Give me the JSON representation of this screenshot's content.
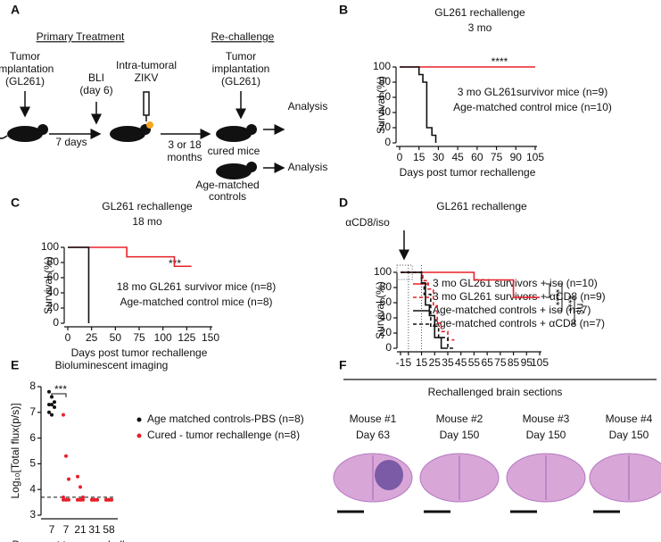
{
  "panel_labels": [
    "A",
    "B",
    "C",
    "D",
    "E",
    "F"
  ],
  "diagram_a": {
    "primary_treatment": "Primary Treatment",
    "rechallenge": "Re-challenge",
    "implant_1": [
      "Tumor",
      "implantation",
      "(GL261)"
    ],
    "bli": [
      "BLI",
      "(day 6)"
    ],
    "zikv": [
      "Intra-tumoral",
      "ZIKV"
    ],
    "implant_2": [
      "Tumor",
      "implantation",
      "(GL261)"
    ],
    "interval_1": "7 days",
    "interval_2": [
      "3 or 18",
      "months"
    ],
    "cured": "cured mice",
    "controls": [
      "Age-matched",
      "controls"
    ],
    "analysis": [
      "Analysis",
      "Analysis"
    ]
  },
  "chart_data": [
    {
      "type": "line",
      "title": "GL261 rechallenge",
      "subtitle": "3 mo",
      "xlabel": "Days post tumor rechallenge",
      "ylabel": "Survival (%)",
      "xlim": [
        0,
        105
      ],
      "xticks": [
        0,
        15,
        30,
        45,
        60,
        75,
        90,
        105
      ],
      "ylim": [
        0,
        100
      ],
      "yticks": [
        0,
        20,
        40,
        60,
        80,
        100
      ],
      "annotations": [
        "****"
      ],
      "series": [
        {
          "name": "3 mo GL261survivor mice (n=9)",
          "color": "#e8202a",
          "line_style": "solid",
          "x": [
            0,
            105
          ],
          "values": [
            100,
            100
          ]
        },
        {
          "name": "Age-matched control mice (n=10)",
          "color": "#111111",
          "line_style": "solid",
          "x": [
            0,
            15,
            15,
            18,
            18,
            21,
            21,
            25,
            25,
            28,
            28
          ],
          "values": [
            100,
            100,
            90,
            90,
            80,
            80,
            20,
            20,
            10,
            10,
            0
          ]
        }
      ]
    },
    {
      "type": "line",
      "title": "GL261 rechallenge",
      "subtitle": "18 mo",
      "xlabel": "Days post tumor rechallenge",
      "ylabel": "Survival (%)",
      "xlim": [
        0,
        150
      ],
      "xticks": [
        0,
        25,
        50,
        75,
        100,
        125,
        150
      ],
      "ylim": [
        0,
        100
      ],
      "yticks": [
        0,
        20,
        40,
        60,
        80,
        100
      ],
      "annotations": [
        "***"
      ],
      "series": [
        {
          "name": "18 mo GL261 survivor mice (n=8)",
          "color": "#e8202a",
          "line_style": "solid",
          "x": [
            0,
            62,
            62,
            112,
            112,
            130
          ],
          "values": [
            100,
            100,
            87.5,
            87.5,
            75,
            75
          ]
        },
        {
          "name": "Age-matched control mice (n=8)",
          "color": "#111111",
          "line_style": "solid",
          "x": [
            0,
            22,
            22
          ],
          "values": [
            100,
            100,
            0
          ]
        }
      ]
    },
    {
      "type": "line",
      "title": "GL261 rechallenge",
      "ylabel": "Survival (%)",
      "xlim": [
        -1,
        105
      ],
      "xticks": [
        -1,
        5,
        15,
        25,
        35,
        45,
        55,
        65,
        75,
        85,
        95,
        105
      ],
      "ylim": [
        0,
        100
      ],
      "yticks": [
        0,
        20,
        40,
        60,
        80,
        100
      ],
      "legend_swatches": true,
      "annotations": [
        "αCD8/iso",
        "****",
        "****",
        "ns"
      ],
      "series": [
        {
          "name": "3 mo GL261 survivors + iso (n=10)",
          "color": "#e8202a",
          "line_style": "solid",
          "x": [
            -1,
            55,
            55,
            85,
            85,
            105
          ],
          "values": [
            100,
            100,
            90,
            90,
            67,
            67
          ]
        },
        {
          "name": "3 mo GL261 survivors + αCD8 (n=9)",
          "color": "#e8202a",
          "line_style": "dashed",
          "x": [
            -1,
            16,
            16,
            20,
            20,
            24,
            24,
            27,
            27,
            30,
            30,
            35,
            35,
            40
          ],
          "values": [
            100,
            100,
            89,
            89,
            78,
            78,
            56,
            56,
            33,
            33,
            22,
            22,
            11,
            11
          ]
        },
        {
          "name": "Age-matched controls + iso (n=7)",
          "color": "#111111",
          "line_style": "solid",
          "x": [
            -1,
            15,
            15,
            18,
            18,
            21,
            21,
            25,
            25,
            30,
            30,
            35
          ],
          "values": [
            100,
            100,
            86,
            86,
            57,
            57,
            43,
            43,
            14,
            14,
            0,
            0
          ]
        },
        {
          "name": "Age-matched controls + αCD8 (n=7)",
          "color": "#111111",
          "line_style": "dashed",
          "x": [
            -1,
            15,
            15,
            17,
            17,
            22,
            22,
            28,
            28,
            35,
            35,
            40
          ],
          "values": [
            100,
            100,
            86,
            86,
            71,
            71,
            29,
            29,
            14,
            14,
            0,
            0
          ]
        }
      ]
    },
    {
      "type": "scatter",
      "title": "Bioluminescent imaging",
      "xlabel": "Days post tumor rechallenge",
      "ylabel": "Log₁₀[Total flux(p/s)]",
      "categories": [
        "7",
        "7",
        "21",
        "31",
        "58"
      ],
      "ylim": [
        3,
        8
      ],
      "yticks": [
        3,
        4,
        5,
        6,
        7,
        8
      ],
      "threshold": 3.7,
      "annotations": [
        "***"
      ],
      "series": [
        {
          "name": "Age matched controls-PBS (n=8)",
          "color": "#111111",
          "values": [
            [
              7.8,
              7.6,
              7.4,
              7.3,
              7.3,
              7.2,
              7.0,
              6.9
            ],
            null,
            null,
            null,
            null
          ]
        },
        {
          "name": "Cured - tumor rechallenge (n=8)",
          "color": "#e8202a",
          "values": [
            null,
            [
              6.9,
              5.3,
              4.4,
              3.7,
              3.6,
              3.6,
              3.6,
              3.6
            ],
            [
              4.5,
              4.1,
              3.7,
              3.6,
              3.6,
              3.6,
              3.6,
              3.6
            ],
            [
              3.6,
              3.6,
              3.6,
              3.6,
              3.6,
              3.6,
              3.6,
              3.6
            ],
            [
              3.6,
              3.6,
              3.6,
              3.6,
              3.6,
              3.6,
              3.6,
              3.6
            ]
          ]
        }
      ]
    }
  ],
  "panel_f": {
    "title": "Rechallenged brain sections",
    "mice": [
      {
        "label": "Mouse #1",
        "day": "Day 63"
      },
      {
        "label": "Mouse #2",
        "day": "Day 150"
      },
      {
        "label": "Mouse #3",
        "day": "Day 150"
      },
      {
        "label": "Mouse #4",
        "day": "Day 150"
      }
    ]
  }
}
